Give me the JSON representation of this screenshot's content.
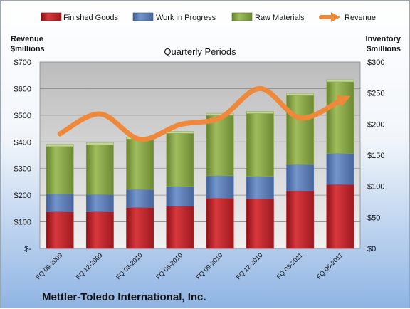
{
  "chart_data": {
    "type": "bar",
    "title": "Quarterly Periods",
    "company": "Mettler-Toledo International, Inc.",
    "left_axis_title": [
      "Revenue",
      "$millions"
    ],
    "right_axis_title": [
      "Inventory",
      "$millions"
    ],
    "left_axis": {
      "min": 0,
      "max": 700,
      "step": 100,
      "tick_labels": [
        "$-",
        "$100",
        "$200",
        "$300",
        "$400",
        "$500",
        "$600",
        "$700"
      ]
    },
    "right_axis": {
      "min": 0,
      "max": 300,
      "step": 50,
      "tick_labels": [
        "$0",
        "$50",
        "$100",
        "$150",
        "$200",
        "$250",
        "$300"
      ]
    },
    "categories": [
      "FQ 09-2009",
      "FQ 12-2009",
      "FQ 03-2010",
      "FQ 06-2010",
      "FQ 09-2010",
      "FQ 12-2010",
      "FQ 03-2011",
      "FQ 06-2011"
    ],
    "stacked_series": [
      {
        "name": "Finished Goods",
        "axis": "right",
        "color": "#c0262c",
        "values": [
          59,
          59,
          66,
          68,
          81,
          80,
          93,
          103
        ]
      },
      {
        "name": "Work in Progress",
        "axis": "right",
        "color": "#5b7fbd",
        "values": [
          29,
          28,
          29,
          32,
          36,
          36,
          42,
          50
        ]
      },
      {
        "name": "Raw Materials",
        "axis": "right",
        "color": "#8bab4a",
        "values": [
          76,
          80,
          81,
          85,
          97,
          101,
          111,
          115
        ]
      }
    ],
    "line_series": {
      "name": "Revenue",
      "axis": "left",
      "color": "#f0883a",
      "values": [
        430,
        505,
        410,
        465,
        490,
        600,
        490,
        555
      ]
    },
    "grid": true,
    "legend_position": "top"
  }
}
